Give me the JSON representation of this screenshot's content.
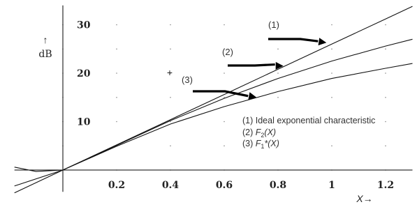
{
  "chart_data": {
    "type": "line",
    "xlabel": "X→",
    "ylabel_arrow": "↑",
    "ylabel": "dB",
    "xlim": [
      -0.18,
      1.3
    ],
    "ylim": [
      -4.5,
      34
    ],
    "x_ticks": [
      0.2,
      0.4,
      0.6,
      0.8,
      1.0,
      1.2
    ],
    "x_tick_labels": [
      "0.2",
      "0.4",
      "0.6",
      "0.8",
      "1",
      "1.2"
    ],
    "y_ticks": [
      10,
      20,
      30
    ],
    "y_tick_labels": [
      "10",
      "20",
      "30"
    ],
    "grid": "dotted",
    "series": [
      {
        "name": "(1)",
        "x": [
          -0.18,
          0,
          0.2,
          0.4,
          0.6,
          0.8,
          1.0,
          1.2,
          1.3
        ],
        "y": [
          -4.7,
          0,
          5.2,
          10.4,
          15.6,
          20.8,
          26.0,
          31.2,
          33.8
        ]
      },
      {
        "name": "(2)",
        "x": [
          -0.18,
          0,
          0.2,
          0.4,
          0.6,
          0.8,
          1.0,
          1.2,
          1.3
        ],
        "y": [
          -3.3,
          0,
          5.1,
          10.2,
          14.8,
          18.9,
          22.5,
          25.6,
          27.0
        ]
      },
      {
        "name": "(3)",
        "x": [
          -0.18,
          -0.1,
          0,
          0.2,
          0.4,
          0.6,
          0.8,
          1.0,
          1.2,
          1.3
        ],
        "y": [
          0.6,
          -0.3,
          0,
          4.9,
          9.5,
          13.1,
          16.2,
          18.9,
          21.0,
          22.0
        ]
      }
    ],
    "callouts": [
      {
        "label": "(1)",
        "arrow_to": [
          0.98,
          26.3
        ]
      },
      {
        "label": "(2)",
        "arrow_to": [
          0.82,
          21.5
        ]
      },
      {
        "label": "(3)",
        "arrow_to": [
          0.72,
          15.0
        ]
      }
    ],
    "legend": [
      {
        "number": "(1)",
        "text": "Ideal exponential characteristic",
        "sub": ""
      },
      {
        "number": "(2)",
        "text": "F",
        "sub": "2",
        "suffix": "(X)"
      },
      {
        "number": "(3)",
        "text": "F",
        "sub": "1",
        "suffix": "*(X)"
      }
    ],
    "marker": "+"
  }
}
